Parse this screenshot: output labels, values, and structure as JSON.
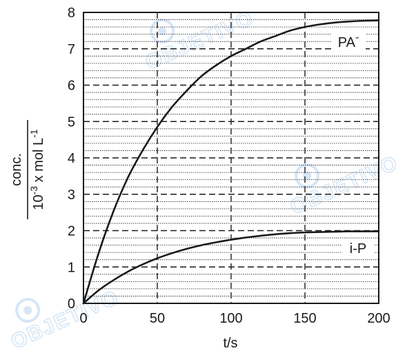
{
  "chart_data": {
    "type": "line",
    "xlabel": "t/s",
    "ylabel": {
      "numerator": "conc.",
      "denominator_base": "10",
      "denominator_exp": "-3",
      "denominator_mid": " x mol L",
      "denominator_unit_exp": "-1"
    },
    "xlim": [
      0,
      200
    ],
    "ylim": [
      0,
      8
    ],
    "x_ticks": [
      0,
      50,
      100,
      150,
      200
    ],
    "y_ticks": [
      0,
      1,
      2,
      3,
      4,
      5,
      6,
      7,
      8
    ],
    "grid": true,
    "series": [
      {
        "name": "PA",
        "name_superscript": "-",
        "x": [
          0,
          10,
          20,
          30,
          40,
          50,
          60,
          70,
          80,
          90,
          100,
          110,
          120,
          130,
          140,
          150,
          160,
          170,
          180,
          190,
          200
        ],
        "y": [
          0,
          1.35,
          2.5,
          3.45,
          4.2,
          4.85,
          5.4,
          5.85,
          6.25,
          6.55,
          6.8,
          7.0,
          7.2,
          7.35,
          7.5,
          7.6,
          7.67,
          7.72,
          7.75,
          7.77,
          7.78
        ]
      },
      {
        "name": "i-P",
        "x": [
          0,
          10,
          20,
          30,
          40,
          50,
          60,
          70,
          80,
          90,
          100,
          110,
          120,
          130,
          140,
          150,
          160,
          170,
          180,
          190,
          200
        ],
        "y": [
          0,
          0.35,
          0.63,
          0.87,
          1.07,
          1.24,
          1.38,
          1.5,
          1.6,
          1.68,
          1.75,
          1.81,
          1.86,
          1.9,
          1.93,
          1.95,
          1.96,
          1.97,
          1.98,
          1.98,
          1.98
        ]
      }
    ]
  },
  "watermark": {
    "text": "OBJETIVO",
    "color": "#4a90d9"
  },
  "colors": {
    "line": "#1a1a1a",
    "grid": "#1a1a1a",
    "background": "#ffffff"
  }
}
